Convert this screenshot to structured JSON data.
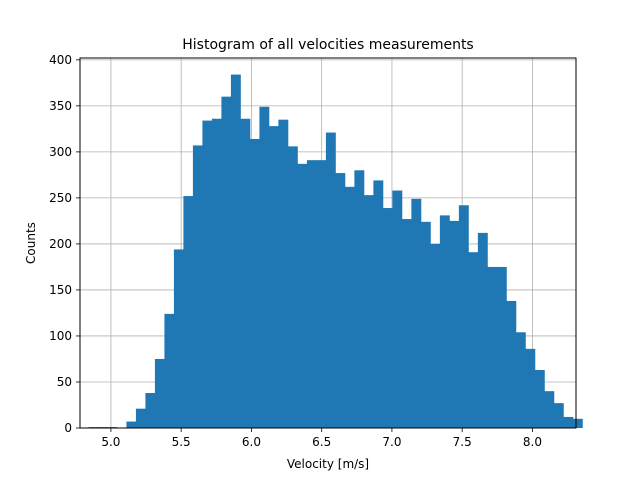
{
  "chart_data": {
    "type": "bar",
    "subtype": "histogram",
    "title": "Histogram of all velocities measurements",
    "xlabel": "Velocity [m/s]",
    "ylabel": "Counts",
    "xlim": [
      4.78,
      8.31
    ],
    "ylim": [
      0,
      402
    ],
    "xticks": [
      5.0,
      5.5,
      6.0,
      6.5,
      7.0,
      7.5,
      8.0
    ],
    "xtick_labels": [
      "5.0",
      "5.5",
      "6.0",
      "6.5",
      "7.0",
      "7.5",
      "8.0"
    ],
    "yticks": [
      0,
      50,
      100,
      150,
      200,
      250,
      300,
      350,
      400
    ],
    "ytick_labels": [
      "0",
      "50",
      "100",
      "150",
      "200",
      "250",
      "300",
      "350",
      "400"
    ],
    "grid": true,
    "legend": "none",
    "bar_color": "#1f77b4",
    "bin_start": 4.84,
    "bin_width": 0.0676,
    "counts": [
      1,
      1,
      1,
      0,
      7,
      21,
      38,
      75,
      124,
      194,
      252,
      307,
      334,
      336,
      360,
      384,
      336,
      314,
      349,
      328,
      335,
      306,
      287,
      291,
      291,
      321,
      277,
      262,
      280,
      253,
      269,
      239,
      258,
      227,
      249,
      224,
      200,
      231,
      225,
      242,
      191,
      212,
      175,
      175,
      138,
      104,
      86,
      63,
      40,
      27,
      12,
      10
    ]
  }
}
